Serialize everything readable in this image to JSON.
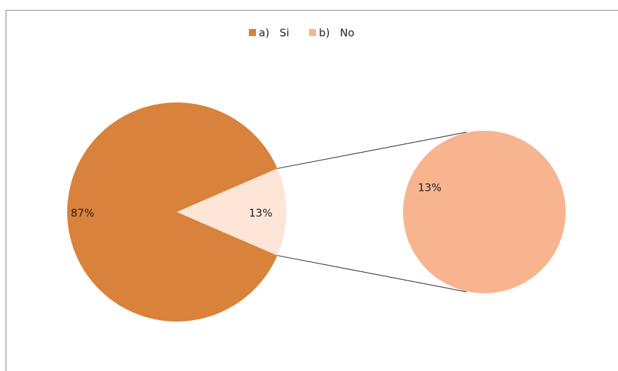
{
  "chart_data": {
    "type": "pie-of-pie",
    "categories": [
      "a)   Si",
      "b)   No"
    ],
    "values": [
      87,
      13
    ],
    "value_labels": [
      "87%",
      "13%"
    ],
    "colors": [
      "#d9823b",
      "#f8b48e"
    ],
    "legend": "top"
  }
}
